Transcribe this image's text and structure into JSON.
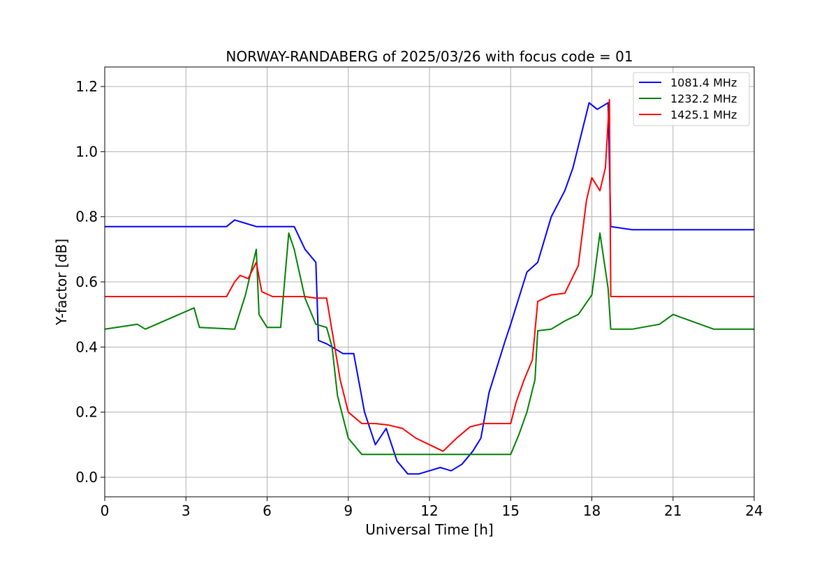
{
  "chart_data": {
    "type": "line",
    "title": "NORWAY-RANDABERG of 2025/03/26 with focus code = 01",
    "xlabel": "Universal Time [h]",
    "ylabel": "Y-factor [dB]",
    "xlim": [
      0,
      24
    ],
    "ylim": [
      -0.06,
      1.26
    ],
    "xticks": [
      "0",
      "3",
      "6",
      "9",
      "12",
      "15",
      "18",
      "21",
      "24"
    ],
    "yticks": [
      "0.0",
      "0.2",
      "0.4",
      "0.6",
      "0.8",
      "1.0",
      "1.2"
    ],
    "grid": true,
    "legend_position": "top-right",
    "series": [
      {
        "name": "1081.4 MHz",
        "color": "#0000ff",
        "x": [
          0,
          1.5,
          3,
          4.5,
          4.8,
          5.2,
          5.6,
          6.0,
          6.5,
          7.0,
          7.4,
          7.8,
          7.9,
          8.2,
          8.4,
          8.8,
          9.2,
          9.6,
          10.0,
          10.4,
          10.8,
          11.2,
          11.6,
          12.0,
          12.4,
          12.8,
          13.2,
          13.6,
          13.9,
          14.2,
          14.5,
          14.8,
          15.0,
          15.3,
          15.6,
          16.0,
          16.5,
          17.0,
          17.3,
          17.6,
          17.9,
          18.2,
          18.6,
          18.7,
          19.5,
          21,
          22.5,
          24
        ],
        "y": [
          0.77,
          0.77,
          0.77,
          0.77,
          0.79,
          0.78,
          0.77,
          0.77,
          0.77,
          0.77,
          0.7,
          0.66,
          0.42,
          0.41,
          0.4,
          0.38,
          0.38,
          0.2,
          0.1,
          0.15,
          0.05,
          0.01,
          0.01,
          0.02,
          0.03,
          0.02,
          0.04,
          0.08,
          0.12,
          0.26,
          0.34,
          0.42,
          0.47,
          0.55,
          0.63,
          0.66,
          0.8,
          0.88,
          0.95,
          1.05,
          1.15,
          1.13,
          1.15,
          0.77,
          0.76,
          0.76,
          0.76,
          0.76
        ]
      },
      {
        "name": "1232.2 MHz",
        "color": "#008000",
        "x": [
          0,
          1.2,
          1.5,
          3.3,
          3.5,
          4.8,
          5.2,
          5.6,
          5.7,
          6.0,
          6.5,
          6.8,
          7.0,
          7.4,
          7.8,
          8.2,
          8.4,
          8.6,
          9.0,
          9.5,
          10.0,
          10.5,
          11.0,
          11.5,
          12.0,
          12.5,
          13.0,
          13.5,
          14.0,
          14.5,
          15.0,
          15.3,
          15.6,
          15.9,
          16.0,
          16.5,
          17.0,
          17.5,
          18.0,
          18.3,
          18.6,
          18.7,
          19.5,
          20.5,
          21,
          22.5,
          24
        ],
        "y": [
          0.455,
          0.47,
          0.455,
          0.52,
          0.46,
          0.455,
          0.56,
          0.7,
          0.5,
          0.46,
          0.46,
          0.75,
          0.7,
          0.55,
          0.47,
          0.46,
          0.4,
          0.25,
          0.12,
          0.07,
          0.07,
          0.07,
          0.07,
          0.07,
          0.07,
          0.07,
          0.07,
          0.07,
          0.07,
          0.07,
          0.07,
          0.13,
          0.2,
          0.3,
          0.45,
          0.455,
          0.48,
          0.5,
          0.56,
          0.75,
          0.58,
          0.455,
          0.455,
          0.47,
          0.5,
          0.455,
          0.455
        ]
      },
      {
        "name": "1425.1 MHz",
        "color": "#ff0000",
        "x": [
          0,
          1.5,
          3,
          4.5,
          4.8,
          5.0,
          5.3,
          5.6,
          5.8,
          6.2,
          6.8,
          7.4,
          7.8,
          8.2,
          8.4,
          8.7,
          9.0,
          9.5,
          10.0,
          10.5,
          11.0,
          11.5,
          12.0,
          12.5,
          13.0,
          13.5,
          14.0,
          14.5,
          15.0,
          15.2,
          15.5,
          15.8,
          16.0,
          16.5,
          17.0,
          17.5,
          17.8,
          18.0,
          18.3,
          18.5,
          18.65,
          18.7,
          19.5,
          21,
          22.5,
          24
        ],
        "y": [
          0.555,
          0.555,
          0.555,
          0.555,
          0.6,
          0.62,
          0.61,
          0.66,
          0.57,
          0.555,
          0.555,
          0.555,
          0.55,
          0.55,
          0.45,
          0.3,
          0.2,
          0.165,
          0.165,
          0.16,
          0.15,
          0.12,
          0.1,
          0.08,
          0.12,
          0.155,
          0.165,
          0.165,
          0.165,
          0.23,
          0.3,
          0.36,
          0.54,
          0.56,
          0.565,
          0.65,
          0.85,
          0.92,
          0.88,
          0.95,
          1.16,
          0.555,
          0.555,
          0.555,
          0.555,
          0.555
        ]
      }
    ]
  }
}
